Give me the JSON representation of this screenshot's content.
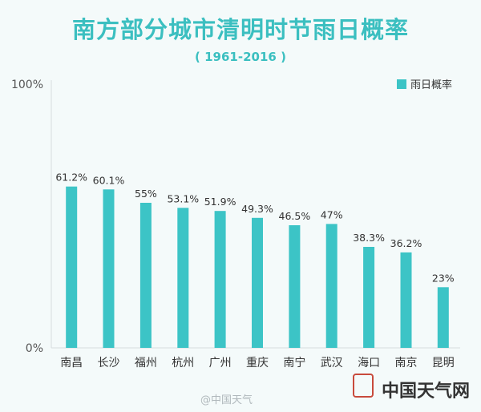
{
  "chart_data": {
    "type": "bar",
    "title": "南方部分城市清明时节雨日概率",
    "subtitle": "( 1961-2016 )",
    "categories": [
      "南昌",
      "长沙",
      "福州",
      "杭州",
      "广州",
      "重庆",
      "南宁",
      "武汉",
      "海口",
      "南京",
      "昆明"
    ],
    "series": [
      {
        "name": "雨日概率",
        "values": [
          61.2,
          60.1,
          55,
          53.1,
          51.9,
          49.3,
          46.5,
          47,
          38.3,
          36.2,
          23
        ],
        "labels": [
          "61.2%",
          "60.1%",
          "55%",
          "53.1%",
          "51.9%",
          "49.3%",
          "46.5%",
          "47%",
          "38.3%",
          "36.2%",
          "23%"
        ]
      }
    ],
    "ylim": [
      0,
      100
    ],
    "yticks": [
      "0%",
      "100%"
    ],
    "grid": false,
    "legend": "top-right",
    "bar_color": "#3cc4c6"
  },
  "footer": {
    "weibo": "@中国天气",
    "logo_text": "中国天气网"
  }
}
